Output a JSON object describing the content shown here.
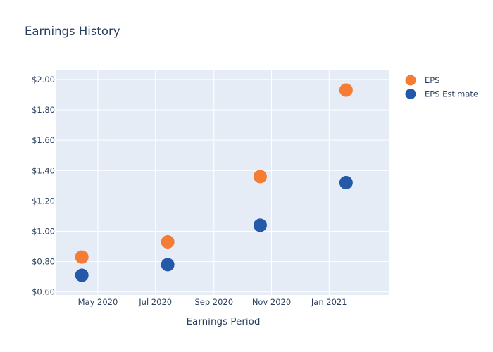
{
  "chart_data": {
    "type": "scatter",
    "title": "Earnings History",
    "xlabel": "Earnings Period",
    "ylabel": "",
    "xlim": [
      "2020-03-18",
      "2021-03-06"
    ],
    "ylim": [
      0.58,
      2.06
    ],
    "x_ticks": [
      {
        "date": "2020-05-01",
        "label": "May 2020"
      },
      {
        "date": "2020-07-01",
        "label": "Jul 2020"
      },
      {
        "date": "2020-09-01",
        "label": "Sep 2020"
      },
      {
        "date": "2020-11-01",
        "label": "Nov 2020"
      },
      {
        "date": "2021-01-01",
        "label": "Jan 2021"
      }
    ],
    "y_ticks": [
      {
        "value": 0.6,
        "label": "$0.60"
      },
      {
        "value": 0.8,
        "label": "$0.80"
      },
      {
        "value": 1.0,
        "label": "$1.00"
      },
      {
        "value": 1.2,
        "label": "$1.20"
      },
      {
        "value": 1.4,
        "label": "$1.40"
      },
      {
        "value": 1.6,
        "label": "$1.60"
      },
      {
        "value": 1.8,
        "label": "$1.80"
      },
      {
        "value": 2.0,
        "label": "$2.00"
      }
    ],
    "grid": true,
    "legend_position": "top-right",
    "series": [
      {
        "name": "EPS",
        "color": "#f57c35",
        "points": [
          {
            "x": "2020-04-14",
            "y": 0.83
          },
          {
            "x": "2020-07-14",
            "y": 0.93
          },
          {
            "x": "2020-10-20",
            "y": 1.36
          },
          {
            "x": "2021-01-19",
            "y": 1.93
          }
        ]
      },
      {
        "name": "EPS Estimate",
        "color": "#2458a8",
        "points": [
          {
            "x": "2020-04-14",
            "y": 0.71
          },
          {
            "x": "2020-07-14",
            "y": 0.78
          },
          {
            "x": "2020-10-20",
            "y": 1.04
          },
          {
            "x": "2021-01-19",
            "y": 1.32
          }
        ]
      }
    ],
    "colors": {
      "plot_background": "#e5ecf6",
      "grid": "#ffffff",
      "text": "#2a3f5f"
    }
  }
}
